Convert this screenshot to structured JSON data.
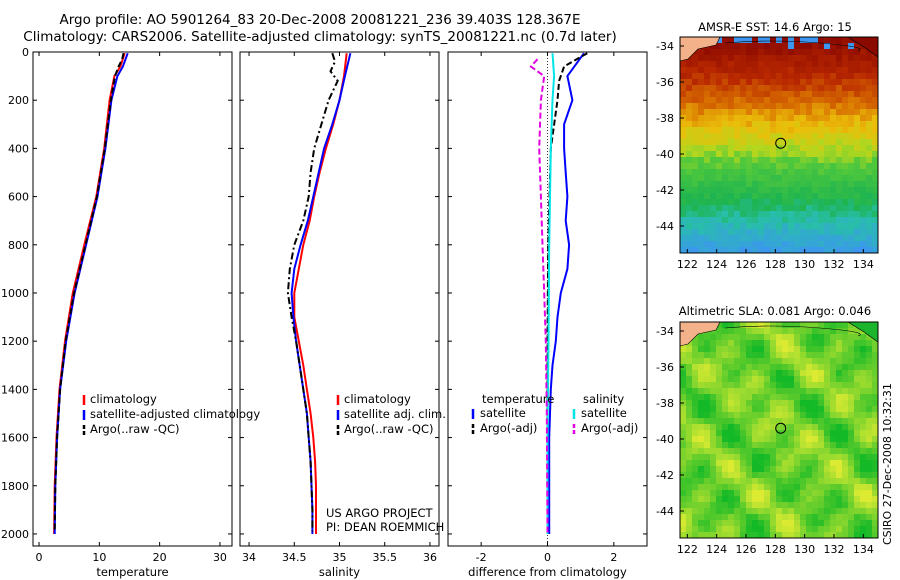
{
  "header": {
    "line1": "Argo profile: AO 5901264_83 20-Dec-2008 20081221_236 39.403S 128.367E",
    "line2": "Climatology: CARS2006. Satellite-adjusted climatology: synTS_20081221.nc (0.7d later)"
  },
  "colors": {
    "red": "#ff0000",
    "blue": "#0000ff",
    "black": "#000000",
    "cyan": "#00e5e5",
    "magenta": "#e000e0"
  },
  "y_axis": {
    "ticks": [
      0,
      200,
      400,
      600,
      800,
      1000,
      1200,
      1400,
      1600,
      1800,
      2000
    ],
    "range": [
      0,
      2050
    ],
    "reversed": true
  },
  "chart_data": [
    {
      "type": "line",
      "xlabel": "temperature",
      "xlim": [
        -1,
        32
      ],
      "xticks": [
        0,
        10,
        20,
        30
      ],
      "ylabel": "",
      "ylim": [
        2050,
        0
      ],
      "legend": [
        "climatology",
        "satellite-adjusted climatology",
        "Argo(..raw -QC)"
      ],
      "series": [
        {
          "color": "red",
          "dash": "solid",
          "points": [
            [
              14.2,
              5
            ],
            [
              13.5,
              60
            ],
            [
              12.5,
              100
            ],
            [
              11.7,
              200
            ],
            [
              10.8,
              400
            ],
            [
              9.5,
              600
            ],
            [
              7.5,
              800
            ],
            [
              5.6,
              1000
            ],
            [
              4.3,
              1200
            ],
            [
              3.4,
              1400
            ],
            [
              2.9,
              1600
            ],
            [
              2.6,
              1800
            ],
            [
              2.5,
              2000
            ]
          ]
        },
        {
          "color": "blue",
          "dash": "solid",
          "points": [
            [
              14.7,
              5
            ],
            [
              13.9,
              60
            ],
            [
              13.0,
              100
            ],
            [
              12.0,
              200
            ],
            [
              11.0,
              400
            ],
            [
              9.7,
              600
            ],
            [
              7.8,
              800
            ],
            [
              5.9,
              1000
            ],
            [
              4.5,
              1200
            ],
            [
              3.5,
              1400
            ],
            [
              3.0,
              1600
            ],
            [
              2.7,
              1800
            ],
            [
              2.6,
              2000
            ]
          ]
        },
        {
          "color": "black",
          "dash": "dash",
          "points": [
            [
              14.0,
              5
            ],
            [
              13.8,
              30
            ],
            [
              13.2,
              60
            ],
            [
              12.6,
              100
            ],
            [
              11.9,
              200
            ],
            [
              10.9,
              400
            ],
            [
              9.6,
              600
            ],
            [
              7.7,
              800
            ],
            [
              5.8,
              1000
            ],
            [
              4.4,
              1200
            ],
            [
              3.5,
              1400
            ],
            [
              3.0,
              1600
            ],
            [
              2.7,
              1800
            ],
            [
              2.6,
              1990
            ]
          ]
        }
      ]
    },
    {
      "type": "line",
      "xlabel": "salinity",
      "xlim": [
        33.9,
        36.1
      ],
      "xticks": [
        34,
        34.5,
        35,
        35.5,
        36
      ],
      "xticklabels": [
        "34",
        "34.5",
        "35",
        "35.5",
        "36"
      ],
      "ylim": [
        2050,
        0
      ],
      "legend": [
        "climatology",
        "satellite adj. clim.",
        "Argo(..raw -QC)"
      ],
      "annotation": [
        "US ARGO PROJECT",
        "PI: DEAN ROEMMICH"
      ],
      "series": [
        {
          "color": "red",
          "dash": "solid",
          "points": [
            [
              35.08,
              5
            ],
            [
              35.05,
              100
            ],
            [
              35.0,
              200
            ],
            [
              34.93,
              300
            ],
            [
              34.85,
              400
            ],
            [
              34.78,
              500
            ],
            [
              34.72,
              600
            ],
            [
              34.67,
              700
            ],
            [
              34.6,
              800
            ],
            [
              34.55,
              900
            ],
            [
              34.5,
              1000
            ],
            [
              34.5,
              1100
            ],
            [
              34.55,
              1200
            ],
            [
              34.6,
              1300
            ],
            [
              34.64,
              1400
            ],
            [
              34.68,
              1500
            ],
            [
              34.71,
              1600
            ],
            [
              34.73,
              1700
            ],
            [
              34.74,
              1800
            ],
            [
              34.74,
              1900
            ],
            [
              34.74,
              2000
            ]
          ]
        },
        {
          "color": "blue",
          "dash": "solid",
          "points": [
            [
              35.12,
              5
            ],
            [
              35.06,
              100
            ],
            [
              35.0,
              200
            ],
            [
              34.92,
              300
            ],
            [
              34.83,
              400
            ],
            [
              34.77,
              500
            ],
            [
              34.71,
              600
            ],
            [
              34.65,
              700
            ],
            [
              34.57,
              800
            ],
            [
              34.5,
              900
            ],
            [
              34.47,
              1000
            ],
            [
              34.49,
              1100
            ],
            [
              34.52,
              1200
            ],
            [
              34.56,
              1300
            ],
            [
              34.6,
              1400
            ],
            [
              34.64,
              1500
            ],
            [
              34.66,
              1600
            ],
            [
              34.68,
              1700
            ],
            [
              34.69,
              1800
            ],
            [
              34.7,
              1900
            ],
            [
              34.7,
              2000
            ]
          ]
        },
        {
          "color": "black",
          "dash": "dashdot",
          "points": [
            [
              34.92,
              5
            ],
            [
              34.95,
              40
            ],
            [
              34.9,
              80
            ],
            [
              34.98,
              120
            ],
            [
              34.88,
              200
            ],
            [
              34.8,
              300
            ],
            [
              34.72,
              400
            ],
            [
              34.68,
              500
            ],
            [
              34.66,
              600
            ],
            [
              34.6,
              700
            ],
            [
              34.5,
              800
            ],
            [
              34.45,
              900
            ],
            [
              34.43,
              1000
            ],
            [
              34.47,
              1100
            ],
            [
              34.52,
              1200
            ],
            [
              34.56,
              1300
            ],
            [
              34.6,
              1400
            ],
            [
              34.64,
              1500
            ],
            [
              34.66,
              1600
            ],
            [
              34.68,
              1700
            ],
            [
              34.69,
              1800
            ],
            [
              34.7,
              1900
            ],
            [
              34.7,
              1990
            ]
          ]
        }
      ]
    },
    {
      "type": "line",
      "xlabel": "difference from climatology",
      "xlim": [
        -3,
        3
      ],
      "xticks": [
        -2,
        0,
        2
      ],
      "ylim": [
        2050,
        0
      ],
      "legend_left": {
        "title": "temperature",
        "items": [
          "satellite",
          "Argo(-adj)"
        ]
      },
      "legend_right": {
        "title": "salinity",
        "items": [
          "satellite",
          "Argo(-adj)"
        ]
      },
      "series": [
        {
          "color": "blue",
          "dash": "solid",
          "points": [
            [
              1.1,
              5
            ],
            [
              0.6,
              100
            ],
            [
              0.75,
              200
            ],
            [
              0.5,
              300
            ],
            [
              0.5,
              400
            ],
            [
              0.55,
              500
            ],
            [
              0.6,
              600
            ],
            [
              0.55,
              700
            ],
            [
              0.65,
              800
            ],
            [
              0.6,
              900
            ],
            [
              0.4,
              1000
            ],
            [
              0.3,
              1100
            ],
            [
              0.25,
              1200
            ],
            [
              0.15,
              1300
            ],
            [
              0.1,
              1400
            ],
            [
              0.05,
              1600
            ],
            [
              0.05,
              1800
            ],
            [
              0.05,
              2000
            ]
          ]
        },
        {
          "color": "black",
          "dash": "dash",
          "points": [
            [
              1.2,
              5
            ],
            [
              0.5,
              60
            ],
            [
              0.35,
              120
            ],
            [
              0.3,
              200
            ],
            [
              0.1,
              400
            ],
            [
              0.02,
              800
            ],
            [
              0.0,
              1200
            ],
            [
              0.0,
              2000
            ]
          ]
        },
        {
          "color": "cyan",
          "dash": "solid",
          "points": [
            [
              0.15,
              5
            ],
            [
              0.2,
              100
            ],
            [
              0.15,
              200
            ],
            [
              0.1,
              400
            ],
            [
              0.05,
              800
            ],
            [
              0.03,
              1200
            ],
            [
              0.0,
              1600
            ],
            [
              0.0,
              2000
            ]
          ]
        },
        {
          "color": "magenta",
          "dash": "dash",
          "points": [
            [
              -0.3,
              30
            ],
            [
              -0.5,
              60
            ],
            [
              -0.1,
              100
            ],
            [
              -0.2,
              200
            ],
            [
              -0.25,
              400
            ],
            [
              -0.2,
              600
            ],
            [
              -0.15,
              800
            ],
            [
              -0.1,
              1000
            ],
            [
              -0.05,
              1200
            ],
            [
              -0.02,
              1500
            ],
            [
              0.0,
              2000
            ]
          ]
        }
      ]
    },
    {
      "type": "heatmap",
      "title": "AMSR-E SST: 14.6 Argo: 15",
      "xlim": [
        121.5,
        135
      ],
      "ylim": [
        -45.5,
        -33.5
      ],
      "xticks": [
        122,
        124,
        126,
        128,
        130,
        132,
        134
      ],
      "yticks": [
        -34,
        -36,
        -38,
        -40,
        -42,
        -44
      ],
      "marker": [
        128.367,
        -39.403
      ]
    },
    {
      "type": "heatmap",
      "title": "Altimetric SLA: 0.081 Argo: 0.046",
      "xlim": [
        121.5,
        135
      ],
      "ylim": [
        -45.5,
        -33.5
      ],
      "xticks": [
        122,
        124,
        126,
        128,
        130,
        132,
        134
      ],
      "yticks": [
        -34,
        -36,
        -38,
        -40,
        -42,
        -44
      ],
      "marker": [
        128.367,
        -39.403
      ]
    }
  ],
  "credit": "CSIRO 27-Dec-2008 10:32:31"
}
